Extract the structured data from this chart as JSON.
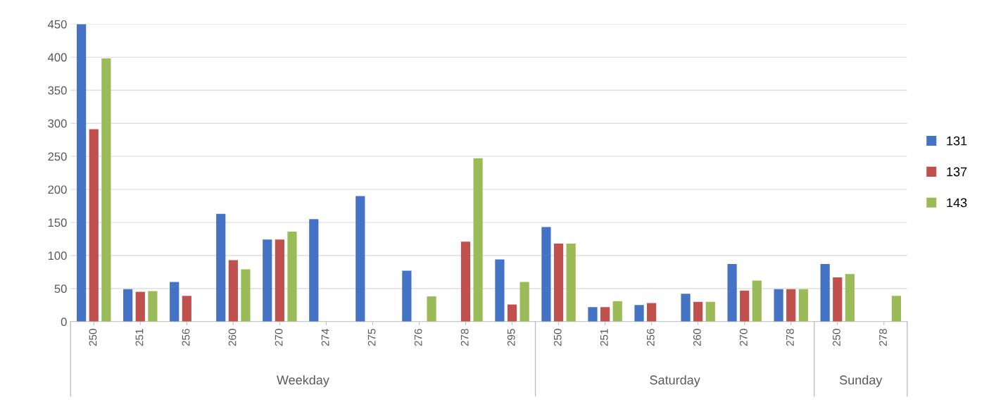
{
  "chart_data": {
    "type": "bar",
    "categories": [
      "250",
      "251",
      "256",
      "260",
      "270",
      "274",
      "275",
      "276",
      "278",
      "295",
      "250",
      "251",
      "256",
      "260",
      "270",
      "278",
      "250",
      "278"
    ],
    "series": [
      {
        "name": "131",
        "color": "#4472c4",
        "values": [
          450,
          49,
          60,
          163,
          124,
          155,
          190,
          77,
          null,
          94,
          143,
          22,
          25,
          42,
          87,
          49,
          87,
          null
        ]
      },
      {
        "name": "137",
        "color": "#c0504d",
        "values": [
          291,
          45,
          39,
          93,
          124,
          null,
          null,
          null,
          121,
          26,
          118,
          22,
          28,
          30,
          47,
          49,
          67,
          null
        ]
      },
      {
        "name": "143",
        "color": "#9bbb59",
        "values": [
          398,
          46,
          null,
          79,
          136,
          null,
          null,
          38,
          247,
          60,
          118,
          31,
          null,
          30,
          62,
          49,
          72,
          39
        ]
      }
    ],
    "annotations": [
      "Weekday",
      "Saturday",
      "Sunday"
    ],
    "ylim": [
      0,
      450
    ],
    "yticks": [
      0,
      50,
      100,
      150,
      200,
      250,
      300,
      350,
      400,
      450
    ],
    "grid": "y",
    "legend": "right"
  }
}
